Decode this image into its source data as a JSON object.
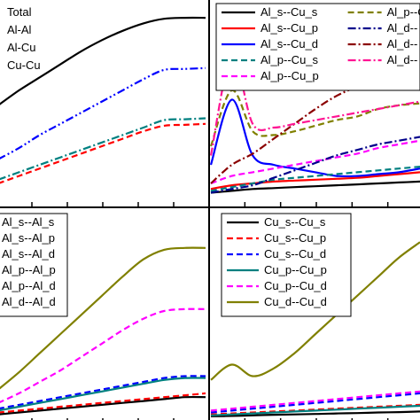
{
  "chart_data": [
    {
      "type": "line",
      "panel": "top-left",
      "grid": false,
      "legend": "top-left",
      "x": [
        0,
        1,
        2,
        3,
        4,
        5,
        6,
        7,
        8,
        9,
        10
      ],
      "ylim": [
        0,
        1
      ],
      "series": [
        {
          "name": "Total",
          "color": "#000000",
          "dash": "solid",
          "values": [
            0.52,
            0.6,
            0.67,
            0.74,
            0.81,
            0.87,
            0.92,
            0.96,
            0.985,
            0.99,
            0.99
          ]
        },
        {
          "name": "Al-Al",
          "color": "#0000ff",
          "dash": "dash-dot-dot",
          "values": [
            0.23,
            0.29,
            0.36,
            0.42,
            0.48,
            0.54,
            0.6,
            0.66,
            0.71,
            0.715,
            0.72
          ]
        },
        {
          "name": "Al-Cu",
          "color": "#ff0000",
          "dash": "dashed",
          "values": [
            0.1,
            0.14,
            0.18,
            0.22,
            0.26,
            0.3,
            0.34,
            0.38,
            0.41,
            0.415,
            0.42
          ]
        },
        {
          "name": "Cu-Cu",
          "color": "#008080",
          "dash": "dash-dot",
          "values": [
            0.12,
            0.16,
            0.2,
            0.24,
            0.28,
            0.32,
            0.36,
            0.4,
            0.44,
            0.445,
            0.45
          ]
        }
      ]
    },
    {
      "type": "line",
      "panel": "top-right",
      "grid": false,
      "legend": "top",
      "x": [
        0,
        1,
        2,
        3,
        4,
        5,
        6,
        7,
        8,
        9,
        10
      ],
      "ylim": [
        0,
        1
      ],
      "series": [
        {
          "name": "Al_s--Cu_s",
          "color": "#000000",
          "dash": "solid",
          "values": [
            0.05,
            0.06,
            0.07,
            0.075,
            0.08,
            0.085,
            0.09,
            0.095,
            0.1,
            0.105,
            0.11
          ]
        },
        {
          "name": "Al_s--Cu_p",
          "color": "#ff0000",
          "dash": "solid",
          "values": [
            0.07,
            0.09,
            0.1,
            0.11,
            0.115,
            0.12,
            0.125,
            0.13,
            0.14,
            0.15,
            0.16
          ]
        },
        {
          "name": "Al_s--Cu_d",
          "color": "#0000ff",
          "dash": "solid",
          "values": [
            0.2,
            0.55,
            0.25,
            0.2,
            0.18,
            0.16,
            0.14,
            0.14,
            0.15,
            0.16,
            0.18
          ]
        },
        {
          "name": "Al_p--Cu_s",
          "color": "#008080",
          "dash": "dashed",
          "values": [
            0.06,
            0.08,
            0.1,
            0.12,
            0.13,
            0.14,
            0.15,
            0.16,
            0.17,
            0.18,
            0.19
          ]
        },
        {
          "name": "Al_p--Cu_p",
          "color": "#ff00ff",
          "dash": "dashed",
          "values": [
            0.1,
            0.14,
            0.16,
            0.18,
            0.2,
            0.22,
            0.24,
            0.26,
            0.29,
            0.31,
            0.33
          ]
        },
        {
          "name": "Al_p--Cu_d",
          "color": "#808000",
          "dash": "dashed",
          "values": [
            0.3,
            0.6,
            0.38,
            0.36,
            0.38,
            0.41,
            0.44,
            0.46,
            0.5,
            0.52,
            0.53
          ]
        },
        {
          "name": "Al_d--",
          "color": "#00008b",
          "dash": "dash-dot",
          "values": [
            0.05,
            0.07,
            0.09,
            0.13,
            0.17,
            0.21,
            0.25,
            0.28,
            0.31,
            0.33,
            0.35
          ]
        },
        {
          "name": "Al_d--",
          "color": "#8b0000",
          "dash": "dash-dot",
          "values": [
            0.1,
            0.2,
            0.26,
            0.34,
            0.42,
            0.5,
            0.57,
            0.62,
            0.66,
            0.68,
            0.7
          ]
        },
        {
          "name": "Al_d--",
          "color": "#ff1493",
          "dash": "dash-dot",
          "values": [
            0.25,
            0.78,
            0.42,
            0.4,
            0.42,
            0.44,
            0.46,
            0.48,
            0.5,
            0.52,
            0.54
          ]
        }
      ]
    },
    {
      "type": "line",
      "panel": "bottom-left",
      "grid": false,
      "legend": "top-left",
      "x": [
        0,
        1,
        2,
        3,
        4,
        5,
        6,
        7,
        8,
        9,
        10
      ],
      "ylim": [
        0,
        1
      ],
      "series": [
        {
          "name": "Al_s--Al_s",
          "color": "#000000",
          "dash": "solid",
          "values": [
            0.02,
            0.03,
            0.04,
            0.05,
            0.06,
            0.07,
            0.08,
            0.09,
            0.1,
            0.11,
            0.11
          ]
        },
        {
          "name": "Al_s--Al_p",
          "color": "#ff0000",
          "dash": "dashed",
          "values": [
            0.03,
            0.04,
            0.05,
            0.06,
            0.07,
            0.08,
            0.09,
            0.1,
            0.11,
            0.12,
            0.13
          ]
        },
        {
          "name": "Al_s--Al_d",
          "color": "#0000ff",
          "dash": "dashed",
          "values": [
            0.05,
            0.07,
            0.09,
            0.11,
            0.13,
            0.15,
            0.17,
            0.19,
            0.21,
            0.22,
            0.22
          ]
        },
        {
          "name": "Al_p--Al_p",
          "color": "#008080",
          "dash": "solid",
          "values": [
            0.04,
            0.06,
            0.08,
            0.1,
            0.12,
            0.14,
            0.16,
            0.18,
            0.2,
            0.21,
            0.21
          ]
        },
        {
          "name": "Al_p--Al_d",
          "color": "#ff00ff",
          "dash": "dashed",
          "values": [
            0.08,
            0.13,
            0.19,
            0.25,
            0.32,
            0.39,
            0.46,
            0.52,
            0.56,
            0.57,
            0.57
          ]
        },
        {
          "name": "Al_d--Al_d",
          "color": "#808000",
          "dash": "solid",
          "values": [
            0.15,
            0.24,
            0.34,
            0.44,
            0.54,
            0.64,
            0.74,
            0.83,
            0.88,
            0.89,
            0.89
          ]
        }
      ]
    },
    {
      "type": "line",
      "panel": "bottom-right",
      "grid": false,
      "legend": "top-left",
      "x": [
        0,
        1,
        2,
        3,
        4,
        5,
        6,
        7,
        8,
        9,
        10
      ],
      "ylim": [
        0,
        1
      ],
      "series": [
        {
          "name": "Cu_s--Cu_s",
          "color": "#000000",
          "dash": "solid",
          "values": [
            0.01,
            0.012,
            0.015,
            0.018,
            0.02,
            0.022,
            0.025,
            0.027,
            0.03,
            0.032,
            0.035
          ]
        },
        {
          "name": "Cu_s--Cu_p",
          "color": "#ff0000",
          "dash": "dashed",
          "values": [
            0.02,
            0.025,
            0.03,
            0.035,
            0.04,
            0.045,
            0.05,
            0.055,
            0.06,
            0.065,
            0.07
          ]
        },
        {
          "name": "Cu_s--Cu_d",
          "color": "#0000ff",
          "dash": "dashed",
          "values": [
            0.03,
            0.04,
            0.05,
            0.06,
            0.07,
            0.08,
            0.09,
            0.1,
            0.11,
            0.12,
            0.13
          ]
        },
        {
          "name": "Cu_p--Cu_p",
          "color": "#008080",
          "dash": "solid",
          "values": [
            0.015,
            0.02,
            0.025,
            0.03,
            0.035,
            0.04,
            0.045,
            0.05,
            0.055,
            0.06,
            0.065
          ]
        },
        {
          "name": "Cu_p--Cu_d",
          "color": "#ff00ff",
          "dash": "dashed",
          "values": [
            0.04,
            0.05,
            0.06,
            0.07,
            0.08,
            0.09,
            0.1,
            0.11,
            0.12,
            0.13,
            0.14
          ]
        },
        {
          "name": "Cu_d--Cu_d",
          "color": "#808000",
          "dash": "solid",
          "values": [
            0.2,
            0.28,
            0.22,
            0.26,
            0.34,
            0.44,
            0.54,
            0.64,
            0.74,
            0.84,
            0.92
          ]
        }
      ]
    }
  ]
}
